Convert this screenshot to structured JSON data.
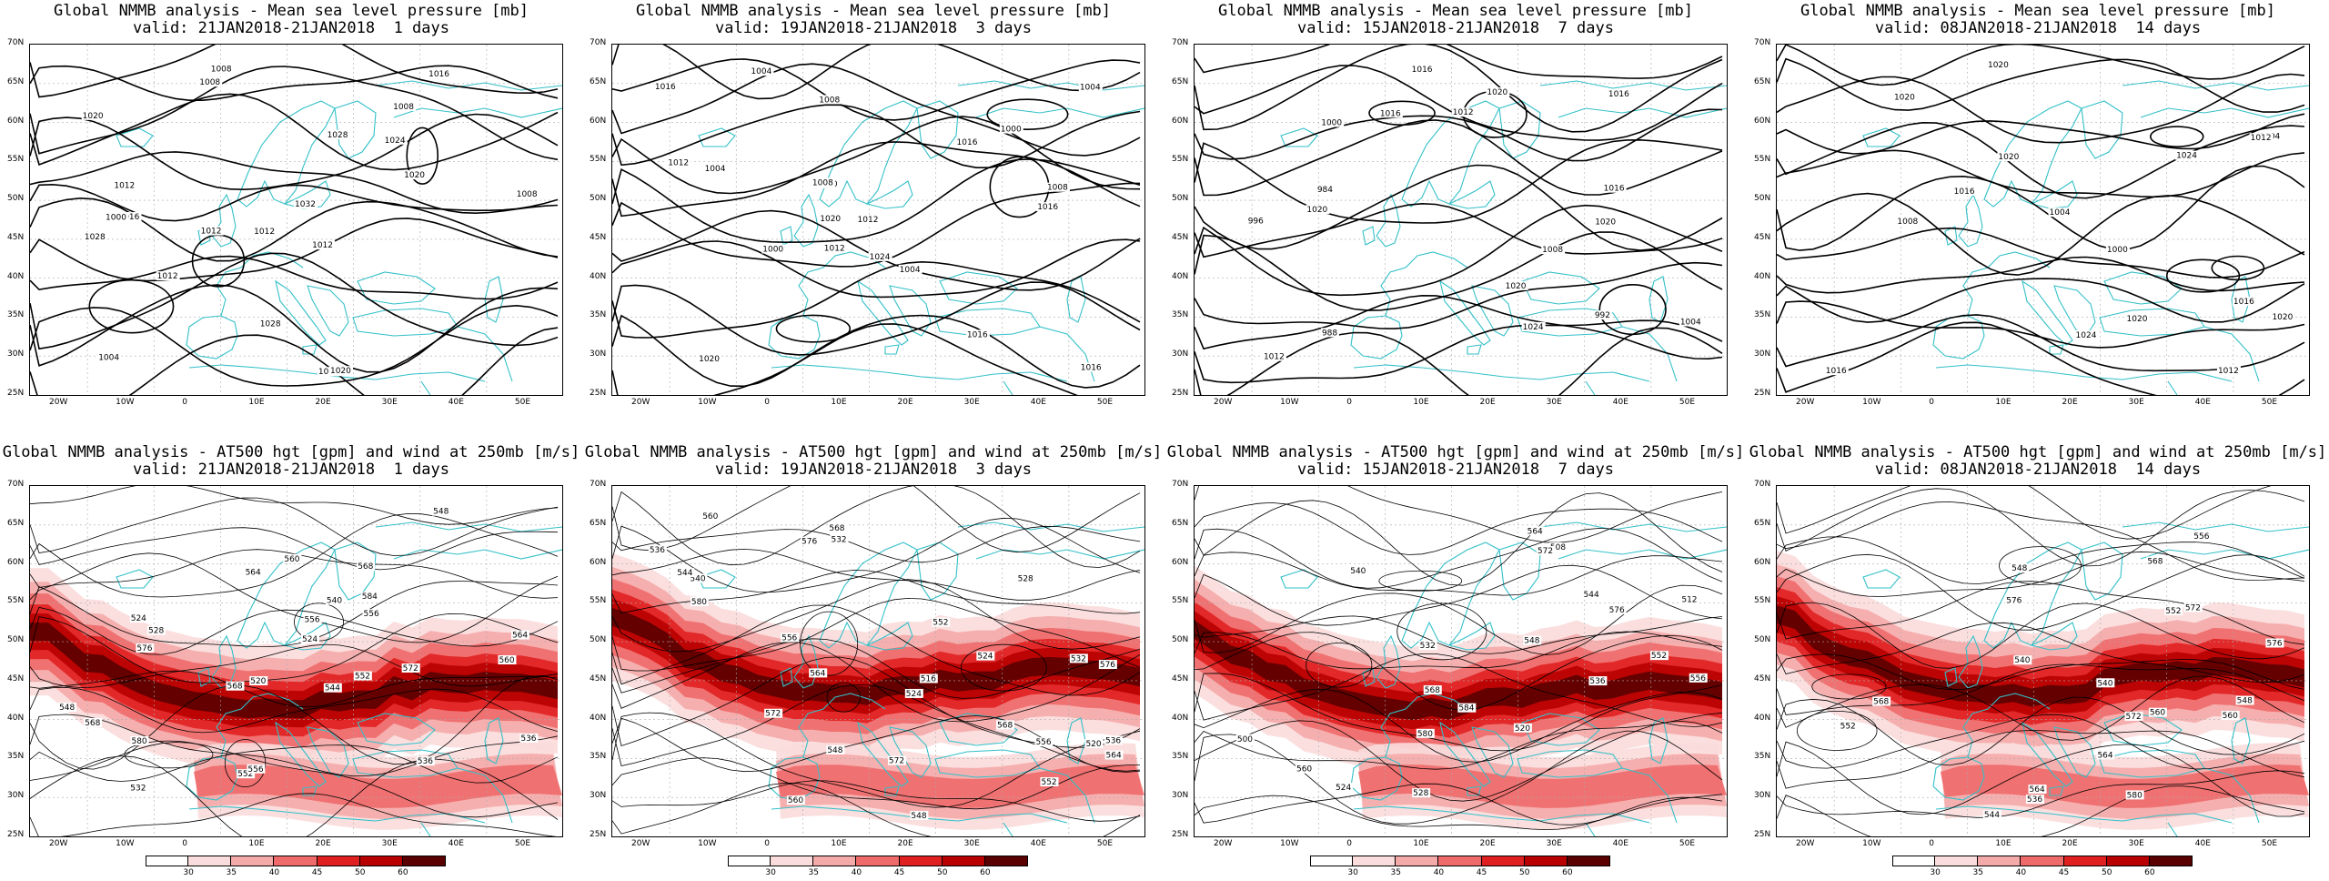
{
  "top_row": {
    "panels": [
      {
        "title": "Global NMMB analysis - Mean sea level pressure [mb]",
        "valid": "valid: 21JAN2018-21JAN2018  1 days",
        "labels": [
          "1008",
          "1008",
          "1008",
          "1012",
          "1012",
          "1016",
          "1020",
          "1024",
          "1028",
          "1028",
          "1032",
          "1004",
          "1008",
          "1012",
          "1016",
          "1020",
          "1028",
          "1016",
          "1020",
          "1012",
          "1012",
          "1000"
        ]
      },
      {
        "title": "Global NMMB analysis - Mean sea level pressure [mb]",
        "valid": "valid: 19JAN2018-21JAN2018  3 days",
        "labels": [
          "1000",
          "1012",
          "1008",
          "1004",
          "1000",
          "1004",
          "1008",
          "1012",
          "1016",
          "1024",
          "1016",
          "1008",
          "1004",
          "1012",
          "1016",
          "1016",
          "1020",
          "1016",
          "1020",
          "1004",
          "1000"
        ]
      },
      {
        "title": "Global NMMB analysis - Mean sea level pressure [mb]",
        "valid": "valid: 15JAN2018-21JAN2018  7 days",
        "labels": [
          "984",
          "988",
          "992",
          "996",
          "1000",
          "1004",
          "1008",
          "1012",
          "1016",
          "1016",
          "1020",
          "1024",
          "1020",
          "1016",
          "1020",
          "1012",
          "1016",
          "1020"
        ]
      },
      {
        "title": "Global NMMB analysis - Mean sea level pressure [mb]",
        "valid": "valid: 08JAN2018-21JAN2018  14 days",
        "labels": [
          "1000",
          "1004",
          "1008",
          "1012",
          "1016",
          "1020",
          "1020",
          "1024",
          "1020",
          "1016",
          "1004",
          "1020",
          "1020",
          "1024",
          "1016",
          "1012"
        ]
      }
    ]
  },
  "bottom_row": {
    "panels": [
      {
        "title": "Global NMMB analysis - AT500 hgt [gpm] and wind at 250mb [m/s]",
        "valid": "valid: 21JAN2018-21JAN2018  1 days",
        "labels": [
          "524",
          "528",
          "532",
          "536",
          "540",
          "544",
          "548",
          "552",
          "556",
          "560",
          "564",
          "568",
          "572",
          "584",
          "520",
          "524",
          "536",
          "548",
          "552",
          "556",
          "560",
          "564",
          "568",
          "576",
          "580",
          "568",
          "556"
        ]
      },
      {
        "title": "Global NMMB analysis - AT500 hgt [gpm] and wind at 250mb [m/s]",
        "valid": "valid: 19JAN2018-21JAN2018  3 days",
        "labels": [
          "516",
          "520",
          "524",
          "528",
          "532",
          "536",
          "540",
          "544",
          "548",
          "552",
          "556",
          "560",
          "564",
          "568",
          "572",
          "576",
          "524",
          "532",
          "536",
          "548",
          "552",
          "556",
          "560",
          "564",
          "568",
          "572",
          "576",
          "580"
        ]
      },
      {
        "title": "Global NMMB analysis - AT500 hgt [gpm] and wind at 250mb [m/s]",
        "valid": "valid: 15JAN2018-21JAN2018  7 days",
        "labels": [
          "500",
          "508",
          "512",
          "520",
          "524",
          "528",
          "532",
          "536",
          "540",
          "544",
          "548",
          "552",
          "556",
          "560",
          "564",
          "568",
          "572",
          "576",
          "580",
          "584"
        ]
      },
      {
        "title": "Global NMMB analysis - AT500 hgt [gpm] and wind at 250mb [m/s]",
        "valid": "valid: 08JAN2018-21JAN2018  14 days",
        "labels": [
          "536",
          "540",
          "544",
          "548",
          "552",
          "556",
          "560",
          "564",
          "568",
          "572",
          "576",
          "580",
          "540",
          "548",
          "552",
          "560",
          "564",
          "568",
          "572",
          "576"
        ]
      }
    ]
  },
  "axes": {
    "lat_labels": [
      "70N",
      "65N",
      "60N",
      "55N",
      "50N",
      "45N",
      "40N",
      "35N",
      "30N",
      "25N"
    ],
    "lon_labels": [
      "20W",
      "10W",
      "0",
      "10E",
      "20E",
      "30E",
      "40E",
      "50E"
    ]
  },
  "colorbar": {
    "ticks": [
      "30",
      "35",
      "40",
      "45",
      "50",
      "60"
    ],
    "colors": [
      "#ffffff",
      "#fbdcdc",
      "#f5aaaa",
      "#ef6a6a",
      "#e02020",
      "#b80000",
      "#5a0000"
    ]
  },
  "colors": {
    "coast": "#33c0c8",
    "contour": "#000000",
    "grid": "#aaaaaa"
  }
}
